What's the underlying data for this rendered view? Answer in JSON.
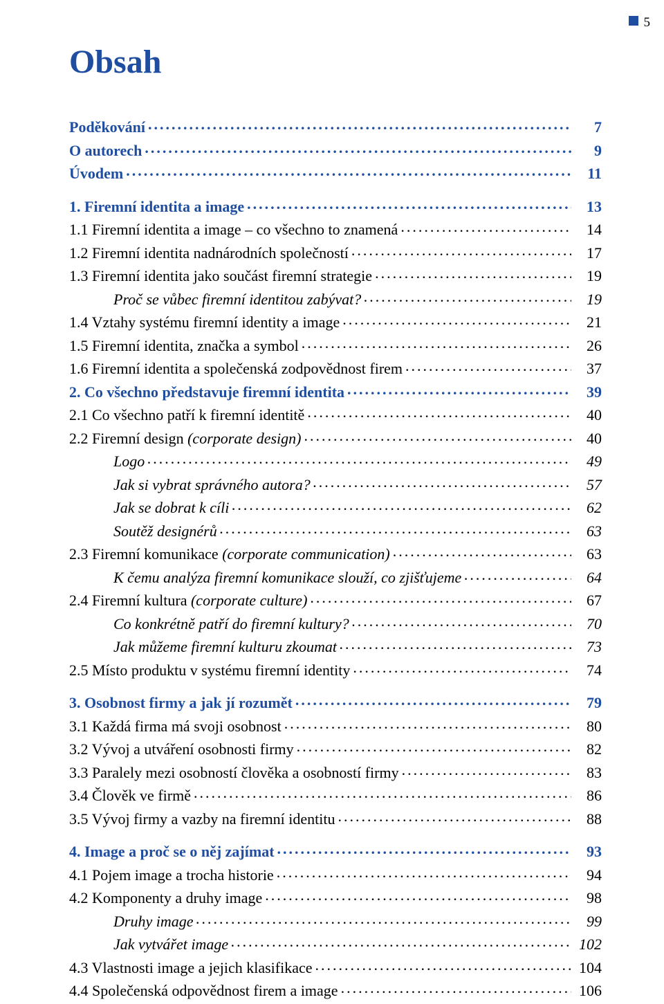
{
  "page_number": "5",
  "title": "Obsah",
  "colors": {
    "accent": "#1f4ea1",
    "text": "#000000",
    "background": "#ffffff"
  },
  "typography": {
    "family": "Times New Roman",
    "title_size_pt": 36,
    "body_size_pt": 16
  },
  "toc": [
    {
      "level": "top",
      "label": "Poděkování",
      "page": "7"
    },
    {
      "level": "top",
      "label": "O autorech",
      "page": "9"
    },
    {
      "level": "top",
      "label": "Úvodem",
      "page": "11"
    },
    {
      "level": "gap"
    },
    {
      "level": "chap",
      "label": "1. Firemní identita a image",
      "page": "13"
    },
    {
      "level": "sec",
      "label": "1.1 Firemní identita a image – co všechno to znamená",
      "page": "14"
    },
    {
      "level": "sec",
      "label": "1.2 Firemní identita nadnárodních společností",
      "page": "17"
    },
    {
      "level": "sec",
      "label": "1.3 Firemní identita jako součást firemní strategie",
      "page": "19"
    },
    {
      "level": "sub",
      "label": "Proč se vůbec firemní identitou zabývat?",
      "page": "19"
    },
    {
      "level": "sec",
      "label": "1.4 Vztahy systému firemní identity a image",
      "page": "21"
    },
    {
      "level": "sec",
      "label": "1.5 Firemní identita, značka a symbol",
      "page": "26"
    },
    {
      "level": "sec",
      "label": "1.6 Firemní identita a společenská zodpovědnost firem",
      "page": "37"
    },
    {
      "level": "chap",
      "label": "2. Co všechno představuje firemní identita",
      "page": "39"
    },
    {
      "level": "sec",
      "label": "2.1 Co všechno patří k firemní identitě",
      "page": "40"
    },
    {
      "level": "sec",
      "label": "2.2 Firemní design (corporate design)",
      "page": "40",
      "partial_italic": "(corporate design)"
    },
    {
      "level": "sub",
      "label": "Logo",
      "page": "49"
    },
    {
      "level": "sub",
      "label": "Jak si vybrat správného autora?",
      "page": "57"
    },
    {
      "level": "sub",
      "label": "Jak se dobrat k cíli",
      "page": "62"
    },
    {
      "level": "sub",
      "label": "Soutěž designérů",
      "page": "63"
    },
    {
      "level": "sec",
      "label": "2.3 Firemní komunikace (corporate communication)",
      "page": "63",
      "partial_italic": "(corporate communication)"
    },
    {
      "level": "sub",
      "label": "K čemu analýza firemní komunikace slouží, co zjišťujeme",
      "page": "64"
    },
    {
      "level": "sec",
      "label": "2.4 Firemní kultura (corporate culture)",
      "page": "67",
      "partial_italic": "(corporate culture)"
    },
    {
      "level": "sub",
      "label": "Co konkrétně patří do firemní kultury?",
      "page": "70"
    },
    {
      "level": "sub",
      "label": "Jak můžeme firemní kulturu zkoumat",
      "page": "73"
    },
    {
      "level": "sec",
      "label": "2.5 Místo produktu v systému firemní identity",
      "page": "74"
    },
    {
      "level": "gap"
    },
    {
      "level": "chap",
      "label": "3. Osobnost firmy a jak jí rozumět",
      "page": "79"
    },
    {
      "level": "sec",
      "label": "3.1 Každá firma má svoji osobnost",
      "page": "80"
    },
    {
      "level": "sec",
      "label": "3.2 Vývoj a utváření osobnosti firmy",
      "page": "82"
    },
    {
      "level": "sec",
      "label": "3.3 Paralely mezi osobností člověka a osobností firmy",
      "page": "83"
    },
    {
      "level": "sec",
      "label": "3.4 Člověk ve firmě",
      "page": "86"
    },
    {
      "level": "sec",
      "label": "3.5 Vývoj firmy a vazby na firemní identitu",
      "page": "88"
    },
    {
      "level": "gap"
    },
    {
      "level": "chap",
      "label": "4. Image a proč se o něj zajímat",
      "page": "93"
    },
    {
      "level": "sec",
      "label": "4.1 Pojem image a trocha historie",
      "page": "94"
    },
    {
      "level": "sec",
      "label": "4.2 Komponenty a druhy image",
      "page": "98"
    },
    {
      "level": "sub",
      "label": "Druhy image",
      "page": "99"
    },
    {
      "level": "sub",
      "label": "Jak vytvářet image",
      "page": "102"
    },
    {
      "level": "sec",
      "label": "4.3 Vlastnosti image a jejich klasifikace",
      "page": "104"
    },
    {
      "level": "sec",
      "label": "4.4 Společenská odpovědnost firem a image",
      "page": "106"
    }
  ]
}
